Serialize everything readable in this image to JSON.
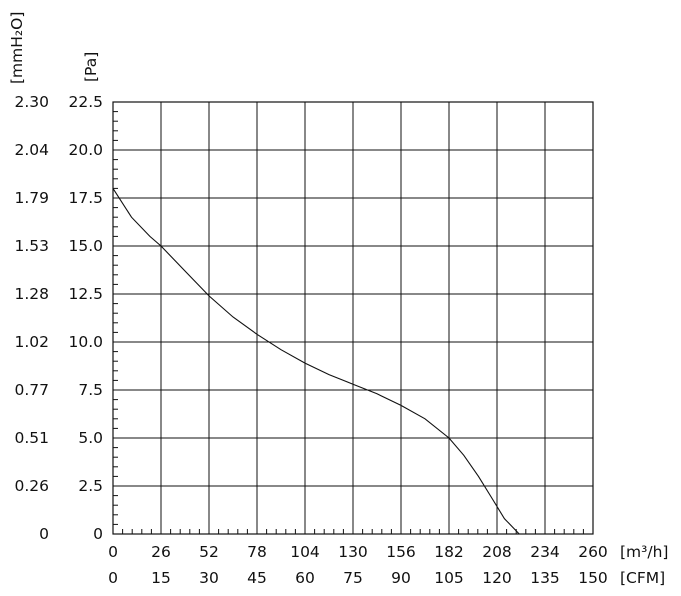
{
  "chart_data": {
    "type": "line",
    "title": "",
    "x_axis_primary": {
      "unit": "[m³/h]",
      "range": [
        0,
        260
      ],
      "ticks": [
        0,
        26,
        52,
        78,
        104,
        130,
        156,
        182,
        208,
        234,
        260
      ]
    },
    "x_axis_secondary": {
      "unit": "[CFM]",
      "ticks": [
        "0",
        "15",
        "30",
        "45",
        "60",
        "75",
        "90",
        "105",
        "120",
        "135",
        "150"
      ]
    },
    "y_axis_primary": {
      "unit": "[Pa]",
      "range": [
        0,
        22.5
      ],
      "ticks": [
        "0",
        "2.5",
        "5.0",
        "7.5",
        "10.0",
        "12.5",
        "15.0",
        "17.5",
        "20.0",
        "22.5"
      ]
    },
    "y_axis_secondary": {
      "unit": "[mmH₂O]",
      "ticks": [
        "0",
        "0.26",
        "0.51",
        "0.77",
        "1.02",
        "1.28",
        "1.53",
        "1.79",
        "2.04",
        "2.30"
      ]
    },
    "grid": true,
    "series": [
      {
        "x": [
          0,
          10,
          20,
          26,
          40,
          52,
          65,
          78,
          91,
          104,
          117,
          130,
          143,
          156,
          169,
          182,
          190,
          198,
          205,
          212,
          220
        ],
        "y": [
          18.0,
          16.5,
          15.5,
          15.0,
          13.6,
          12.4,
          11.3,
          10.4,
          9.6,
          8.9,
          8.3,
          7.8,
          7.3,
          6.7,
          6.0,
          5.0,
          4.1,
          3.0,
          1.9,
          0.8,
          0
        ]
      }
    ]
  }
}
